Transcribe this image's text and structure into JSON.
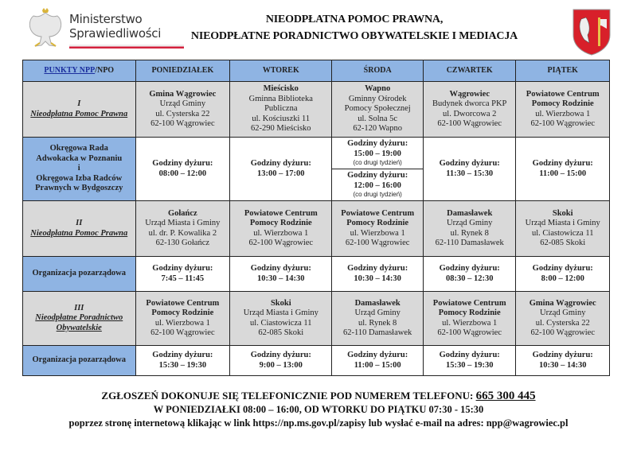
{
  "header": {
    "ministry_logo": [
      "Ministerstwo",
      "Sprawiedliwości"
    ],
    "title_lines": [
      "NIEODPŁATNA POMOC PRAWNA,",
      "NIEODPŁATNE PORADNICTWO OBYWATELSKIE I MEDIACJA"
    ],
    "crest": "coat-of-arms"
  },
  "colors": {
    "header_blue": "#8fb4e3",
    "location_gray": "#d9d9d9",
    "link_blue": "#1b2f9e",
    "flag_red": "#d4213d"
  },
  "table": {
    "first_header_link": "PUNKTY NPP",
    "first_header_rest": "/NPO",
    "days": [
      "PONIEDZIAŁEK",
      "WTOREK",
      "ŚRODA",
      "CZWARTEK",
      "PIĄTEK"
    ],
    "rows": [
      {
        "type": "loc",
        "label": [
          "I",
          "Nieodpłatna Pomoc Prawna"
        ],
        "cells": [
          {
            "bold": [
              "Gmina Wągrowiec"
            ],
            "lines": [
              "Urząd Gminy",
              "ul. Cysterska 22",
              "62-100 Wągrowiec"
            ]
          },
          {
            "bold": [
              "Mieścisko"
            ],
            "lines": [
              "Gminna Biblioteka",
              "Publiczna",
              "ul. Kościuszki 11",
              "62-290 Mieścisko"
            ]
          },
          {
            "bold": [
              "Wapno"
            ],
            "lines": [
              "Gminny Ośrodek",
              "Pomocy Społecznej",
              "ul. Solna 5c",
              "62-120 Wapno"
            ]
          },
          {
            "bold": [
              "Wągrowiec"
            ],
            "lines": [
              "Budynek dworca PKP",
              "ul. Dworcowa 2",
              "62-100 Wągrowiec"
            ]
          },
          {
            "bold": [
              "Powiatowe Centrum",
              "Pomocy Rodzinie"
            ],
            "lines": [
              "ul. Wierzbowa 1",
              "62-100 Wągrowiec"
            ]
          }
        ]
      },
      {
        "type": "hrs",
        "label": [
          "Okręgowa Rada",
          "Adwokacka w Poznaniu",
          "i",
          "Okręgowa Izba Radców",
          "Prawnych w Bydgoszczy"
        ],
        "cells": [
          {
            "bold": [
              "Godziny dyżuru:",
              "08:00 – 12:00"
            ]
          },
          {
            "bold": [
              "Godziny dyżuru:",
              "13:00 – 17:00"
            ]
          },
          {
            "split": [
              {
                "bold": [
                  "Godziny dyżuru:",
                  "15:00 – 19:00"
                ],
                "note": "(co drugi tydzień)"
              },
              {
                "bold": [
                  "Godziny dyżuru:",
                  "12:00 – 16:00"
                ],
                "note": "(co drugi tydzień)"
              }
            ]
          },
          {
            "bold": [
              "Godziny dyżuru:",
              "11:30 – 15:30"
            ]
          },
          {
            "bold": [
              "Godziny dyżuru:",
              "11:00 – 15:00"
            ]
          }
        ]
      },
      {
        "type": "loc",
        "label": [
          "II",
          "Nieodpłatna Pomoc Prawna"
        ],
        "cells": [
          {
            "bold": [
              "Gołańcz"
            ],
            "lines": [
              "Urząd Miasta i Gminy",
              "ul. dr. P. Kowalika 2",
              "62-130 Gołańcz"
            ]
          },
          {
            "bold": [
              "Powiatowe Centrum",
              "Pomocy Rodzinie"
            ],
            "lines": [
              "ul. Wierzbowa 1",
              "62-100 Wągrowiec"
            ]
          },
          {
            "bold": [
              "Powiatowe Centrum",
              "Pomocy Rodzinie"
            ],
            "lines": [
              "ul. Wierzbowa 1",
              "62-100 Wągrowiec"
            ]
          },
          {
            "bold": [
              "Damasławek"
            ],
            "lines": [
              "Urząd Gminy",
              "ul. Rynek 8",
              "62-110 Damasławek"
            ]
          },
          {
            "bold": [
              "Skoki"
            ],
            "lines": [
              "Urząd Miasta i Gminy",
              "ul. Ciastowicza 11",
              "62-085 Skoki"
            ]
          }
        ]
      },
      {
        "type": "hrs",
        "label": [
          "Organizacja pozarządowa"
        ],
        "cells": [
          {
            "bold": [
              "Godziny dyżuru:",
              "7:45 – 11:45"
            ]
          },
          {
            "bold": [
              "Godziny dyżuru:",
              "10:30 – 14:30"
            ]
          },
          {
            "bold": [
              "Godziny dyżuru:",
              "10:30 – 14:30"
            ]
          },
          {
            "bold": [
              "Godziny dyżuru:",
              "08:30 – 12:30"
            ]
          },
          {
            "bold": [
              "Godziny dyżuru:",
              "8:00 – 12:00"
            ]
          }
        ]
      },
      {
        "type": "loc",
        "label": [
          "III",
          "Nieodpłatne Poradnictwo",
          "Obywatelskie"
        ],
        "cells": [
          {
            "bold": [
              "Powiatowe Centrum",
              "Pomocy Rodzinie"
            ],
            "lines": [
              "ul. Wierzbowa 1",
              "62-100 Wągrowiec"
            ]
          },
          {
            "bold": [
              "Skoki"
            ],
            "lines": [
              "Urząd Miasta i Gminy",
              "ul. Ciastowicza 11",
              "62-085 Skoki"
            ]
          },
          {
            "bold": [
              "Damasławek"
            ],
            "lines": [
              "Urząd Gminy",
              "ul. Rynek 8",
              "62-110 Damasławek"
            ]
          },
          {
            "bold": [
              "Powiatowe Centrum",
              "Pomocy Rodzinie"
            ],
            "lines": [
              "ul. Wierzbowa 1",
              "62-100 Wągrowiec"
            ]
          },
          {
            "bold": [
              "Gmina Wągrowiec"
            ],
            "lines": [
              "Urząd Gminy",
              "ul. Cysterska 22",
              "62-100 Wągrowiec"
            ]
          }
        ]
      },
      {
        "type": "hrs",
        "label": [
          "Organizacja pozarządowa"
        ],
        "cells": [
          {
            "bold": [
              "Godziny dyżuru:",
              "15:30 – 19:30"
            ]
          },
          {
            "bold": [
              "Godziny dyżuru:",
              "9:00 – 13:00"
            ]
          },
          {
            "bold": [
              "Godziny dyżuru:",
              "11:00 – 15:00"
            ]
          },
          {
            "bold": [
              "Godziny dyżuru:",
              "15:30 – 19:30"
            ]
          },
          {
            "bold": [
              "Godziny dyżuru:",
              "10:30 – 14:30"
            ]
          }
        ]
      }
    ]
  },
  "footer": {
    "line1": "ZGŁOSZEŃ DOKONUJE SIĘ TELEFONICZNIE POD NUMEREM TELEFONU: ",
    "phone": "665 300 445",
    "line2": "W PONIEDZIAŁKI 08:00 – 16:00, OD WTORKU DO PIĄTKU 07:30 - 15:30",
    "line3": "poprzez stronę internetową klikając w link https://np.ms.gov.pl/zapisy lub wysłać e-mail na adres: npp@wagrowiec.pl"
  }
}
